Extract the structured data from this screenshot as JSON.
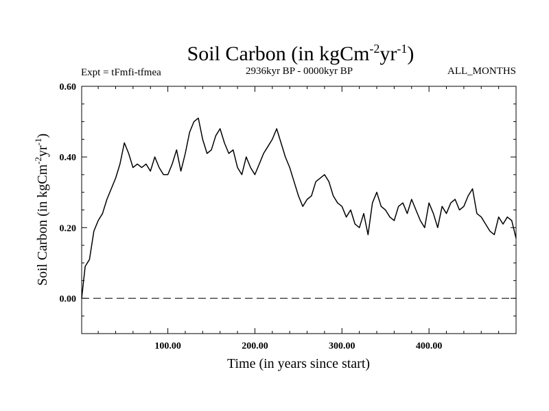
{
  "chart_data": {
    "type": "line",
    "title_main": "Soil Carbon (in kgCm",
    "title_sup1": "-2",
    "title_mid": "yr",
    "title_sup2": "-1",
    "title_end": ")",
    "expt_label": "Expt = tFmfi-tfmea",
    "period_label": "2936kyr BP - 0000kyr BP",
    "months_label": "ALL_MONTHS",
    "xlabel": "Time (in years since start)",
    "ylabel_main": "Soil Carbon (in kgCm",
    "ylabel_sup1": "-2",
    "ylabel_mid": "yr",
    "ylabel_sup2": "-1",
    "ylabel_end": ")",
    "xlim": [
      1,
      500
    ],
    "ylim": [
      -0.1,
      0.6
    ],
    "x_ticks": [
      100,
      200,
      300,
      400
    ],
    "x_tick_labels": [
      "100.00",
      "200.00",
      "300.00",
      "400.00"
    ],
    "y_ticks": [
      0.0,
      0.2,
      0.4,
      0.6
    ],
    "y_tick_labels": [
      "0.00",
      "0.20",
      "0.40",
      "0.60"
    ],
    "reference_line": 0.0,
    "series": [
      {
        "name": "Soil Carbon",
        "x": [
          1,
          5,
          10,
          15,
          20,
          25,
          30,
          35,
          40,
          45,
          50,
          55,
          60,
          65,
          70,
          75,
          80,
          85,
          90,
          95,
          100,
          105,
          110,
          115,
          120,
          125,
          130,
          135,
          140,
          145,
          150,
          155,
          160,
          165,
          170,
          175,
          180,
          185,
          190,
          195,
          200,
          205,
          210,
          215,
          220,
          225,
          230,
          235,
          240,
          245,
          250,
          255,
          260,
          265,
          270,
          275,
          280,
          285,
          290,
          295,
          300,
          305,
          310,
          315,
          320,
          325,
          330,
          335,
          340,
          345,
          350,
          355,
          360,
          365,
          370,
          375,
          380,
          385,
          390,
          395,
          400,
          405,
          410,
          415,
          420,
          425,
          430,
          435,
          440,
          445,
          450,
          455,
          460,
          465,
          470,
          475,
          480,
          485,
          490,
          495,
          500
        ],
        "y": [
          0.0,
          0.09,
          0.11,
          0.19,
          0.22,
          0.24,
          0.28,
          0.31,
          0.34,
          0.38,
          0.44,
          0.41,
          0.37,
          0.38,
          0.37,
          0.38,
          0.36,
          0.4,
          0.37,
          0.35,
          0.35,
          0.38,
          0.42,
          0.36,
          0.41,
          0.47,
          0.5,
          0.51,
          0.45,
          0.41,
          0.42,
          0.46,
          0.48,
          0.44,
          0.41,
          0.42,
          0.37,
          0.35,
          0.4,
          0.37,
          0.35,
          0.38,
          0.41,
          0.43,
          0.45,
          0.48,
          0.44,
          0.4,
          0.37,
          0.33,
          0.29,
          0.26,
          0.28,
          0.29,
          0.33,
          0.34,
          0.35,
          0.33,
          0.29,
          0.27,
          0.26,
          0.23,
          0.25,
          0.21,
          0.2,
          0.24,
          0.18,
          0.27,
          0.3,
          0.26,
          0.25,
          0.23,
          0.22,
          0.26,
          0.27,
          0.24,
          0.28,
          0.25,
          0.22,
          0.2,
          0.27,
          0.24,
          0.2,
          0.26,
          0.24,
          0.27,
          0.28,
          0.25,
          0.26,
          0.29,
          0.31,
          0.24,
          0.23,
          0.21,
          0.19,
          0.18,
          0.23,
          0.21,
          0.23,
          0.22,
          0.17
        ]
      }
    ]
  }
}
